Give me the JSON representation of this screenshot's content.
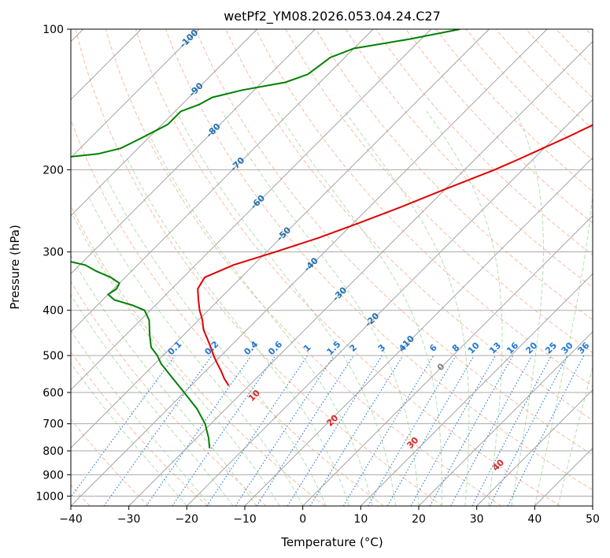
{
  "chart_data": {
    "type": "line",
    "title": "wetPf2_YM08.2026.053.04.24.C27",
    "xlabel": "Temperature (°C)",
    "ylabel": "Pressure (hPa)",
    "xlim": [
      -40,
      50
    ],
    "ylim": [
      1050,
      100
    ],
    "yscale": "log",
    "skew": 45,
    "x_ticks": [
      -40,
      -30,
      -20,
      -10,
      0,
      10,
      20,
      30,
      40,
      50
    ],
    "y_ticks": [
      100,
      200,
      300,
      400,
      500,
      600,
      700,
      800,
      900,
      1000
    ],
    "grid": true,
    "colors": {
      "temperature": "#e00000",
      "dewpoint": "#008000",
      "dry_adiabat": "#f4a582",
      "moist_adiabat": "#a6d9a0",
      "mixing_ratio": "#1f77d4",
      "isotherm": "#999999",
      "isotherm_label": "#1f6fb0",
      "theta_label": "#d62728",
      "freezing_label": "#7f7f7f"
    },
    "series": [
      {
        "key": "temperature",
        "p": [
          100,
          110,
          120,
          130,
          140,
          150,
          160,
          170,
          180,
          190,
          200,
          220,
          240,
          260,
          280,
          300,
          320,
          340,
          360,
          380,
          400,
          420,
          440,
          460,
          480,
          500,
          520,
          540,
          560,
          580
        ],
        "t": [
          -1,
          -3,
          -5.2,
          -7.8,
          -10.2,
          -12.8,
          -15.5,
          -17.8,
          -20.2,
          -22.5,
          -24.8,
          -30,
          -34.5,
          -39,
          -43.5,
          -48.5,
          -53.5,
          -56.3,
          -55.5,
          -53.5,
          -51.5,
          -49.3,
          -47.5,
          -45.3,
          -43.2,
          -41.3,
          -39.3,
          -37.3,
          -35.5,
          -33.5
        ]
      },
      {
        "key": "dewpoint",
        "p": [
          100,
          105,
          110,
          115,
          120,
          125,
          130,
          135,
          140,
          145,
          150,
          155,
          160,
          165,
          170,
          175,
          180,
          185,
          190,
          195,
          200,
          210,
          220,
          230,
          240,
          250,
          260,
          270,
          280,
          290,
          295,
          300,
          310,
          320,
          330,
          340,
          350,
          360,
          370,
          380,
          390,
          400,
          420,
          450,
          480,
          500,
          520,
          550,
          600,
          650,
          700,
          750,
          790
        ],
        "t": [
          -55,
          -62,
          -70,
          -72.5,
          -73,
          -73.5,
          -76,
          -82,
          -86,
          -87,
          -89,
          -89,
          -89,
          -90,
          -91,
          -92,
          -93,
          -96,
          -104,
          -110,
          -112,
          -113,
          -104.5,
          -102,
          -96.5,
          -93,
          -89,
          -88,
          -88.5,
          -90.5,
          -92,
          -91,
          -85,
          -79,
          -76,
          -72.5,
          -70,
          -69.5,
          -70,
          -68,
          -64,
          -61,
          -58.5,
          -56,
          -53.5,
          -51,
          -49,
          -45.5,
          -40,
          -35,
          -31,
          -28,
          -26
        ]
      }
    ],
    "isotherm_labels": [
      -100,
      -90,
      -80,
      -70,
      -60,
      -50,
      -40,
      -30,
      -20,
      -10
    ],
    "freezing_label": 0,
    "theta_labels": [
      10,
      20,
      30,
      40
    ],
    "mixing_ratio_labels": [
      "0.1",
      "0.2",
      "0.4",
      "0.6",
      "1",
      "1.5",
      "2",
      "3",
      "4",
      "6",
      "8",
      "10",
      "13",
      "16",
      "20",
      "25",
      "30",
      "36"
    ]
  }
}
